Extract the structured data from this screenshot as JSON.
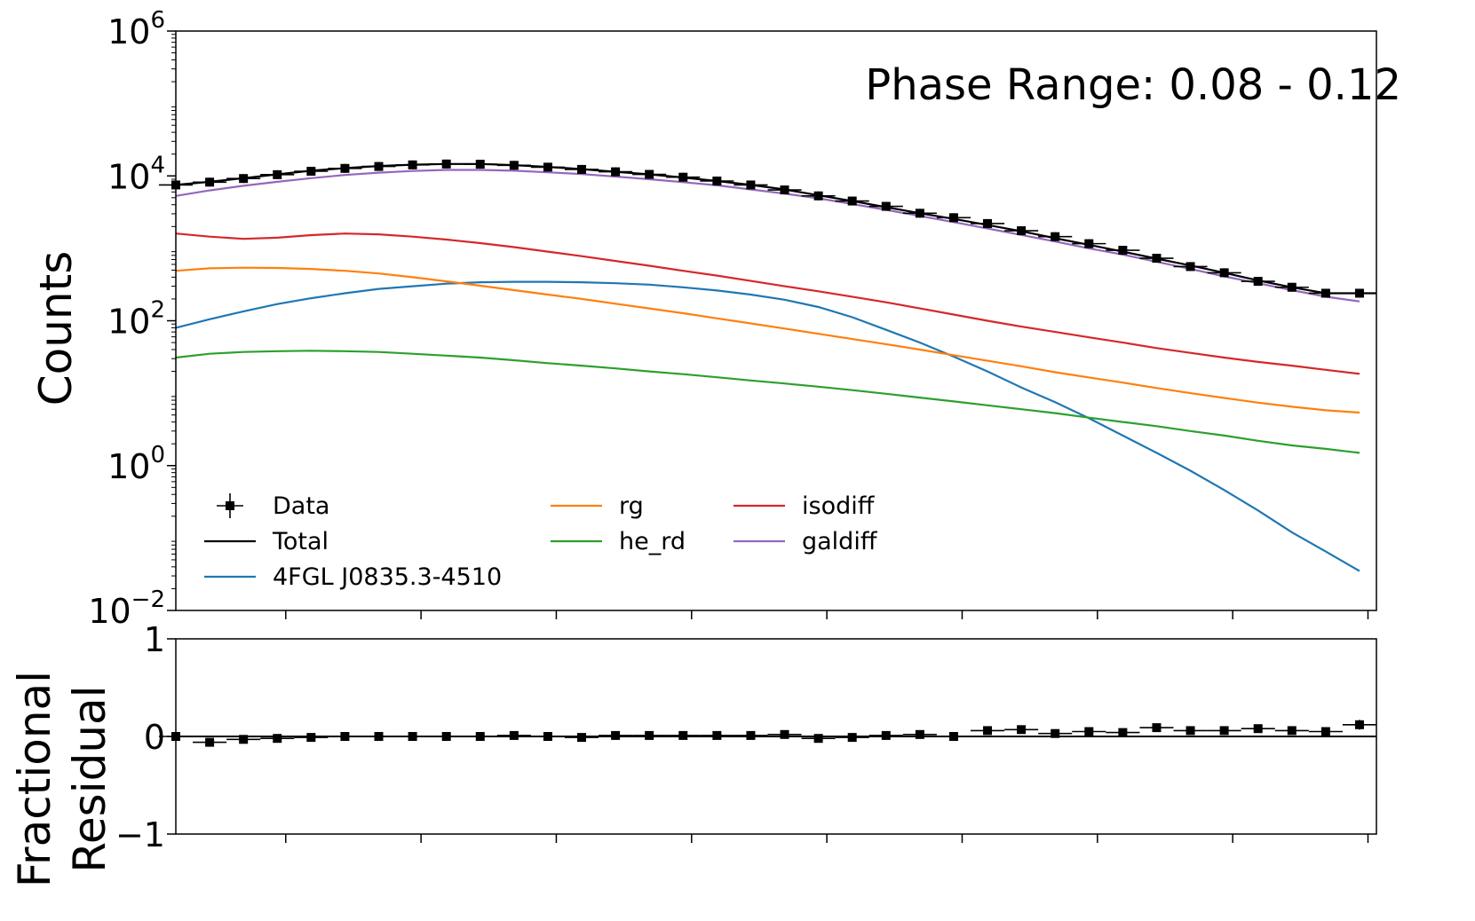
{
  "chart_data": [
    {
      "panel": "main",
      "type": "line",
      "annotation": "Phase Range: 0.08 - 0.12",
      "ylabel": "Counts",
      "xlabel": "",
      "yscale": "log",
      "ylim": [
        0.01,
        1000000
      ],
      "xlim": [
        0,
        35.5
      ],
      "yticks": [
        {
          "value": 0.01,
          "base": "10",
          "exp": "−2"
        },
        {
          "value": 1,
          "base": "10",
          "exp": "0"
        },
        {
          "value": 100,
          "base": "10",
          "exp": "2"
        },
        {
          "value": 10000,
          "base": "10",
          "exp": "4"
        },
        {
          "value": 1000000,
          "base": "10",
          "exp": "6"
        }
      ],
      "xticks": [
        3.25,
        7.25,
        11.25,
        15.25,
        19.25,
        23.25,
        27.25,
        31.25,
        35.25
      ],
      "legend_position": "lower-left",
      "data": {
        "name": "Data",
        "color": "#000000",
        "x": [
          0,
          1,
          2,
          3,
          4,
          5,
          6,
          7,
          8,
          9,
          10,
          11,
          12,
          13,
          14,
          15,
          16,
          17,
          18,
          19,
          20,
          21,
          22,
          23,
          24,
          25,
          26,
          27,
          28,
          29,
          30,
          31,
          32,
          33,
          34,
          35
        ],
        "y": [
          7500,
          8200,
          9200,
          10400,
          11600,
          12700,
          13500,
          14200,
          14600,
          14500,
          14000,
          13200,
          12300,
          11400,
          10500,
          9600,
          8500,
          7500,
          6400,
          5300,
          4500,
          3800,
          3050,
          2650,
          2200,
          1750,
          1450,
          1160,
          940,
          730,
          560,
          460,
          350,
          290,
          240,
          240
        ]
      },
      "series": [
        {
          "name": "Total",
          "color": "#000000",
          "x": [
            0,
            1,
            2,
            3,
            4,
            5,
            6,
            7,
            8,
            9,
            10,
            11,
            12,
            13,
            14,
            15,
            16,
            17,
            18,
            19,
            20,
            21,
            22,
            23,
            24,
            25,
            26,
            27,
            28,
            29,
            30,
            31,
            32,
            33,
            34,
            35.5
          ],
          "y": [
            7500,
            8300,
            9300,
            10500,
            11800,
            12800,
            13700,
            14300,
            14600,
            14600,
            14100,
            13300,
            12400,
            11400,
            10500,
            9500,
            8500,
            7500,
            6500,
            5400,
            4500,
            3700,
            3050,
            2550,
            2100,
            1720,
            1380,
            1120,
            900,
            720,
            580,
            460,
            360,
            290,
            240,
            240
          ]
        },
        {
          "name": "4FGL J0835.3-4510",
          "color": "#1f77b4",
          "x": [
            0,
            1,
            2,
            3,
            4,
            5,
            6,
            7,
            8,
            9,
            10,
            11,
            12,
            13,
            14,
            15,
            16,
            17,
            18,
            19,
            20,
            21,
            22,
            23,
            24,
            25,
            26,
            27,
            28,
            29,
            30,
            31,
            32,
            33,
            34,
            35
          ],
          "y": [
            80,
            105,
            135,
            170,
            205,
            240,
            275,
            300,
            325,
            340,
            345,
            345,
            340,
            330,
            315,
            290,
            262,
            230,
            195,
            155,
            112,
            75,
            50,
            32,
            20,
            12,
            7.5,
            4.5,
            2.6,
            1.5,
            0.85,
            0.46,
            0.24,
            0.12,
            0.065,
            0.035
          ]
        },
        {
          "name": "rg",
          "color": "#ff7f0e",
          "x": [
            0,
            1,
            2,
            3,
            4,
            5,
            6,
            7,
            8,
            9,
            10,
            11,
            12,
            13,
            14,
            15,
            16,
            17,
            18,
            19,
            20,
            21,
            22,
            23,
            24,
            25,
            26,
            27,
            28,
            29,
            30,
            31,
            32,
            33,
            34,
            35
          ],
          "y": [
            490,
            530,
            540,
            535,
            520,
            490,
            450,
            400,
            350,
            305,
            265,
            230,
            200,
            172,
            148,
            127,
            108,
            92,
            78,
            66,
            56,
            47.5,
            40,
            33.5,
            28,
            23.5,
            19.5,
            16.5,
            14,
            11.8,
            10,
            8.6,
            7.4,
            6.5,
            5.8,
            5.4
          ]
        },
        {
          "name": "he_rd",
          "color": "#2ca02c",
          "x": [
            0,
            1,
            2,
            3,
            4,
            5,
            6,
            7,
            8,
            9,
            10,
            11,
            12,
            13,
            14,
            15,
            16,
            17,
            18,
            19,
            20,
            21,
            22,
            23,
            24,
            25,
            26,
            27,
            28,
            29,
            30,
            31,
            32,
            33,
            34,
            35
          ],
          "y": [
            31,
            35,
            37,
            38,
            38.5,
            38,
            37,
            35,
            33,
            31,
            28.5,
            26,
            24,
            22,
            20,
            18.3,
            16.6,
            15,
            13.6,
            12.3,
            11,
            9.8,
            8.7,
            7.7,
            6.8,
            6,
            5.3,
            4.6,
            4,
            3.5,
            3,
            2.6,
            2.2,
            1.9,
            1.7,
            1.5
          ]
        },
        {
          "name": "isodiff",
          "color": "#d62728",
          "x": [
            0,
            1,
            2,
            3,
            4,
            5,
            6,
            7,
            8,
            9,
            10,
            11,
            12,
            13,
            14,
            15,
            16,
            17,
            18,
            19,
            20,
            21,
            22,
            23,
            24,
            25,
            26,
            27,
            28,
            29,
            30,
            31,
            32,
            33,
            34,
            35
          ],
          "y": [
            1600,
            1450,
            1350,
            1400,
            1520,
            1600,
            1560,
            1450,
            1320,
            1180,
            1040,
            900,
            780,
            670,
            575,
            490,
            420,
            355,
            300,
            255,
            215,
            180,
            148,
            122,
            100,
            83,
            70,
            59,
            50,
            42,
            36,
            31,
            27,
            24,
            21,
            18.5
          ]
        },
        {
          "name": "galdiff",
          "color": "#9467bd",
          "x": [
            0,
            1,
            2,
            3,
            4,
            5,
            6,
            7,
            8,
            9,
            10,
            11,
            12,
            13,
            14,
            15,
            16,
            17,
            18,
            19,
            20,
            21,
            22,
            23,
            24,
            25,
            26,
            27,
            28,
            29,
            30,
            31,
            32,
            33,
            34,
            35
          ],
          "y": [
            5300,
            6300,
            7300,
            8300,
            9300,
            10300,
            11100,
            11700,
            12100,
            12100,
            11800,
            11200,
            10600,
            9800,
            9000,
            8200,
            7400,
            6500,
            5700,
            4900,
            4100,
            3400,
            2800,
            2300,
            1880,
            1530,
            1240,
            1000,
            820,
            650,
            520,
            410,
            330,
            265,
            215,
            185
          ]
        }
      ],
      "legend": [
        {
          "label": "Data",
          "kind": "errorbar",
          "color": "#000000"
        },
        {
          "label": "Total",
          "kind": "line",
          "color": "#000000"
        },
        {
          "label": "4FGL J0835.3-4510",
          "kind": "line",
          "color": "#1f77b4"
        },
        {
          "label": "rg",
          "kind": "line",
          "color": "#ff7f0e"
        },
        {
          "label": "he_rd",
          "kind": "line",
          "color": "#2ca02c"
        },
        {
          "label": "isodiff",
          "kind": "line",
          "color": "#d62728"
        },
        {
          "label": "galdiff",
          "kind": "line",
          "color": "#9467bd"
        }
      ]
    },
    {
      "panel": "residual",
      "type": "scatter",
      "ylabel_lines": [
        "Fractional",
        "Residual"
      ],
      "xlabel": "",
      "ylim": [
        -1,
        1
      ],
      "xlim": [
        0,
        35.5
      ],
      "yticks": [
        {
          "value": 1,
          "label": "1"
        },
        {
          "value": 0,
          "label": "0"
        },
        {
          "value": -1,
          "label": "−1"
        }
      ],
      "xticks": [
        3.25,
        7.25,
        11.25,
        15.25,
        19.25,
        23.25,
        27.25,
        31.25,
        35.25
      ],
      "reference_line": 0,
      "x": [
        0,
        1,
        2,
        3,
        4,
        5,
        6,
        7,
        8,
        9,
        10,
        11,
        12,
        13,
        14,
        15,
        16,
        17,
        18,
        19,
        20,
        21,
        22,
        23,
        24,
        25,
        26,
        27,
        28,
        29,
        30,
        31,
        32,
        33,
        34,
        35
      ],
      "y": [
        0.0,
        -0.06,
        -0.03,
        -0.02,
        -0.01,
        0.0,
        0.0,
        0.0,
        0.0,
        0.0,
        0.01,
        0.0,
        -0.01,
        0.01,
        0.01,
        0.01,
        0.01,
        0.01,
        0.02,
        -0.02,
        -0.01,
        0.01,
        0.02,
        0.0,
        0.06,
        0.07,
        0.03,
        0.05,
        0.04,
        0.09,
        0.06,
        0.06,
        0.08,
        0.06,
        0.05,
        0.12
      ],
      "yerr": [
        0.02,
        0.02,
        0.02,
        0.02,
        0.02,
        0.02,
        0.02,
        0.02,
        0.02,
        0.02,
        0.02,
        0.02,
        0.02,
        0.02,
        0.02,
        0.02,
        0.02,
        0.02,
        0.02,
        0.02,
        0.02,
        0.02,
        0.02,
        0.02,
        0.02,
        0.02,
        0.02,
        0.02,
        0.02,
        0.02,
        0.02,
        0.03,
        0.03,
        0.03,
        0.03,
        0.05
      ]
    }
  ]
}
